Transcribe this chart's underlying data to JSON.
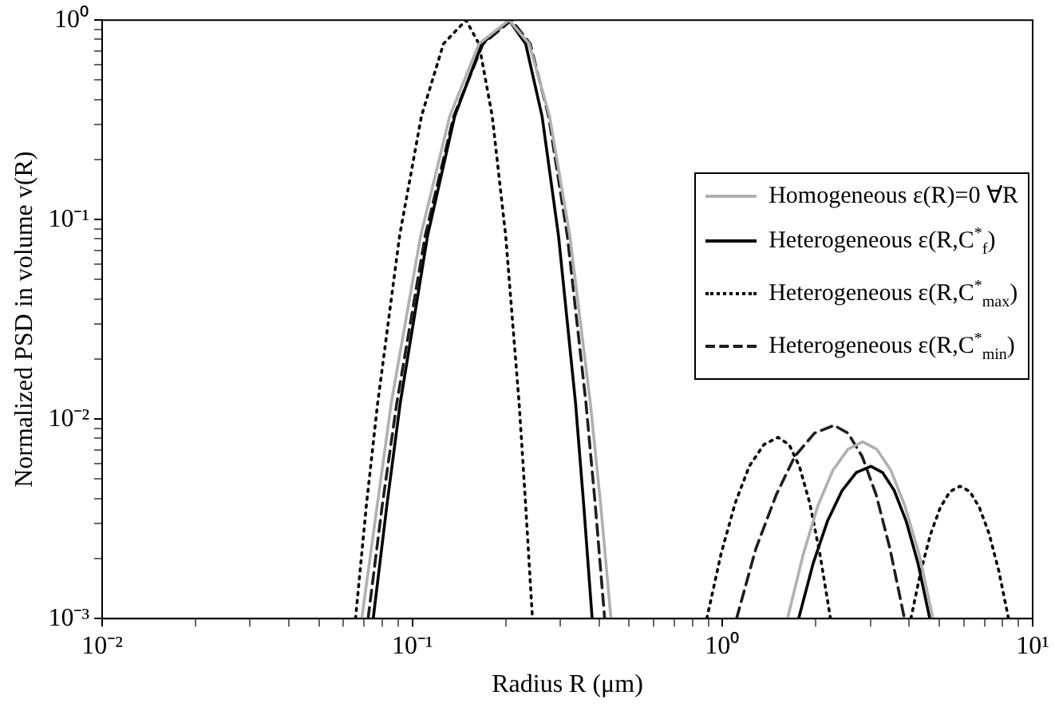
{
  "chart_data": {
    "type": "line",
    "xlabel": "Radius R (μm)",
    "ylabel": "Normalized PSD in volume v(R)",
    "log": "xy",
    "grid": false,
    "legend": "right",
    "marker": "none",
    "xlim": [
      0.01,
      10
    ],
    "ylim": [
      0.001,
      1
    ],
    "xticks": [
      {
        "value": 0.01,
        "label": "10⁻²"
      },
      {
        "value": 0.02,
        "label": null
      },
      {
        "value": 0.03,
        "label": null
      },
      {
        "value": 0.04,
        "label": null
      },
      {
        "value": 0.05,
        "label": null
      },
      {
        "value": 0.06,
        "label": null
      },
      {
        "value": 0.07,
        "label": null
      },
      {
        "value": 0.08,
        "label": null
      },
      {
        "value": 0.09,
        "label": null
      },
      {
        "value": 0.1,
        "label": "10⁻¹"
      },
      {
        "value": 0.2,
        "label": null
      },
      {
        "value": 0.3,
        "label": null
      },
      {
        "value": 0.4,
        "label": null
      },
      {
        "value": 0.5,
        "label": null
      },
      {
        "value": 0.6,
        "label": null
      },
      {
        "value": 0.7,
        "label": null
      },
      {
        "value": 0.8,
        "label": null
      },
      {
        "value": 0.9,
        "label": null
      },
      {
        "value": 1,
        "label": "10⁰"
      },
      {
        "value": 2,
        "label": null
      },
      {
        "value": 3,
        "label": null
      },
      {
        "value": 4,
        "label": null
      },
      {
        "value": 5,
        "label": null
      },
      {
        "value": 6,
        "label": null
      },
      {
        "value": 7,
        "label": null
      },
      {
        "value": 8,
        "label": null
      },
      {
        "value": 9,
        "label": null
      },
      {
        "value": 10,
        "label": "10¹"
      }
    ],
    "yticks": [
      {
        "value": 0.001,
        "label": "10⁻³"
      },
      {
        "value": 0.002,
        "label": null
      },
      {
        "value": 0.003,
        "label": null
      },
      {
        "value": 0.004,
        "label": null
      },
      {
        "value": 0.005,
        "label": null
      },
      {
        "value": 0.006,
        "label": null
      },
      {
        "value": 0.007,
        "label": null
      },
      {
        "value": 0.008,
        "label": null
      },
      {
        "value": 0.009,
        "label": null
      },
      {
        "value": 0.01,
        "label": "10⁻²"
      },
      {
        "value": 0.02,
        "label": null
      },
      {
        "value": 0.03,
        "label": null
      },
      {
        "value": 0.04,
        "label": null
      },
      {
        "value": 0.05,
        "label": null
      },
      {
        "value": 0.06,
        "label": null
      },
      {
        "value": 0.07,
        "label": null
      },
      {
        "value": 0.08,
        "label": null
      },
      {
        "value": 0.09,
        "label": null
      },
      {
        "value": 0.1,
        "label": "10⁻¹"
      },
      {
        "value": 0.2,
        "label": null
      },
      {
        "value": 0.3,
        "label": null
      },
      {
        "value": 0.4,
        "label": null
      },
      {
        "value": 0.5,
        "label": null
      },
      {
        "value": 0.6,
        "label": null
      },
      {
        "value": 0.7,
        "label": null
      },
      {
        "value": 0.8,
        "label": null
      },
      {
        "value": 0.9,
        "label": null
      },
      {
        "value": 1,
        "label": "10⁰"
      }
    ],
    "series": [
      {
        "name": "Homogeneous ε(R)=0 ∀R",
        "color": "#b0b0b0",
        "line_style": "solid",
        "x": [
          0.0687,
          0.0855,
          0.1064,
          0.132,
          0.164,
          0.205,
          0.238,
          0.277,
          0.322,
          0.375,
          0.405,
          0.437,
          1.0,
          1.62,
          1.82,
          2.03,
          2.27,
          2.54,
          2.83,
          3.14,
          3.49,
          3.87,
          4.31,
          4.77
        ],
        "values": [
          0.001,
          0.012,
          0.083,
          0.33,
          0.76,
          1,
          0.76,
          0.33,
          0.083,
          0.012,
          0.0037,
          0.001,
          null,
          0.001,
          0.00209,
          0.00368,
          0.00554,
          0.00707,
          0.0077,
          0.00707,
          0.00554,
          0.00368,
          0.00209,
          0.001
        ]
      },
      {
        "name": "Heterogeneous ε(R,C$^{*}$$_{f}$)",
        "color": "#000000",
        "line_style": "solid",
        "x": [
          0.0748,
          0.0828,
          0.0914,
          0.112,
          0.137,
          0.1675,
          0.205,
          0.232,
          0.262,
          0.296,
          0.336,
          0.357,
          0.38,
          1.0,
          1.76,
          1.96,
          2.18,
          2.43,
          2.7,
          3.01,
          3.28,
          3.58,
          3.91,
          4.27,
          4.66
        ],
        "values": [
          0.001,
          0.0037,
          0.012,
          0.083,
          0.33,
          0.76,
          1,
          0.76,
          0.33,
          0.083,
          0.012,
          0.0037,
          0.001,
          null,
          0.001,
          0.00189,
          0.00308,
          0.00438,
          0.0054,
          0.0058,
          0.0054,
          0.00438,
          0.00308,
          0.00189,
          0.001
        ]
      },
      {
        "name": "Heterogeneous ε(R,C$^{*}$$_{max}$)",
        "color": "#000000",
        "line_style": "dotted",
        "x": [
          0.0656,
          0.0711,
          0.0773,
          0.091,
          0.107,
          0.126,
          0.149,
          0.164,
          0.181,
          0.2,
          0.221,
          0.232,
          0.244,
          0.6,
          0.89,
          0.99,
          1.1,
          1.22,
          1.36,
          1.51,
          1.64,
          1.77,
          1.91,
          2.06,
          2.23,
          3.0,
          4.05,
          4.36,
          4.69,
          5.04,
          5.42,
          5.83,
          6.27,
          6.73,
          7.24,
          7.78,
          8.36
        ],
        "values": [
          0.001,
          0.0037,
          0.012,
          0.083,
          0.33,
          0.76,
          1,
          0.76,
          0.33,
          0.083,
          0.012,
          0.0037,
          0.001,
          null,
          0.001,
          0.00212,
          0.00381,
          0.0058,
          0.00745,
          0.0081,
          0.00745,
          0.0058,
          0.00381,
          0.00212,
          0.001,
          null,
          0.001,
          0.00173,
          0.00266,
          0.00361,
          0.00434,
          0.00461,
          0.00434,
          0.00361,
          0.00266,
          0.00173,
          0.001
        ]
      },
      {
        "name": "Heterogeneous ε(R,C$^{*}$$_{min}$)",
        "color": "#1e1e1e",
        "line_style": "dashed",
        "x": [
          0.072,
          0.08,
          0.0891,
          0.11,
          0.136,
          0.169,
          0.209,
          0.24,
          0.275,
          0.316,
          0.363,
          0.389,
          0.417,
          0.8,
          1.11,
          1.28,
          1.49,
          1.71,
          1.98,
          2.29,
          2.54,
          2.82,
          3.13,
          3.47,
          3.86
        ],
        "values": [
          0.001,
          0.0037,
          0.012,
          0.083,
          0.33,
          0.76,
          1,
          0.76,
          0.33,
          0.083,
          0.012,
          0.0037,
          0.001,
          null,
          0.001,
          0.00223,
          0.00417,
          0.0065,
          0.0085,
          0.0093,
          0.0085,
          0.0065,
          0.00417,
          0.00223,
          0.001
        ]
      }
    ]
  }
}
